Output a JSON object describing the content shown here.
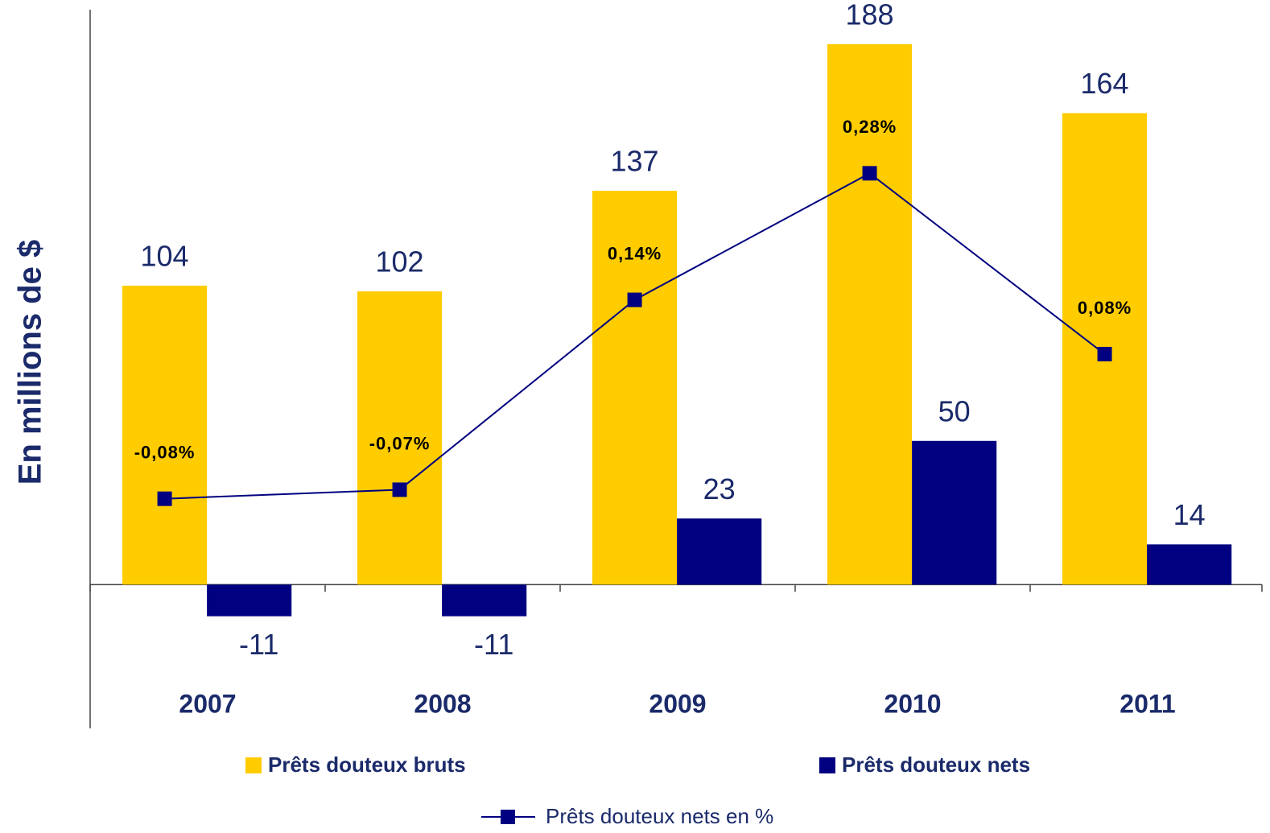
{
  "chart_data": {
    "type": "bar",
    "y_label": "En millions de $",
    "categories": [
      "2007",
      "2008",
      "2009",
      "2010",
      "2011"
    ],
    "ylim": [
      -50,
      200
    ],
    "y2lim": [
      -0.334,
      0.461
    ],
    "grid": false,
    "legend": "bottom",
    "series": [
      {
        "name": "Prêts douteux bruts",
        "color": "#FFCC00",
        "values": [
          104,
          102,
          137,
          188,
          164
        ]
      },
      {
        "name": "Prêts douteux nets",
        "color": "#000080",
        "values": [
          -11,
          -11,
          23,
          50,
          14
        ]
      },
      {
        "name": "Prêts douteux nets en %",
        "type": "line",
        "axis": "y2",
        "color": "#000080",
        "values": [
          -0.08,
          -0.07,
          0.14,
          0.28,
          0.08
        ],
        "value_labels": [
          "-0,08%",
          "-0,07%",
          "0,14%",
          "0,28%",
          "0,08%"
        ]
      }
    ]
  }
}
